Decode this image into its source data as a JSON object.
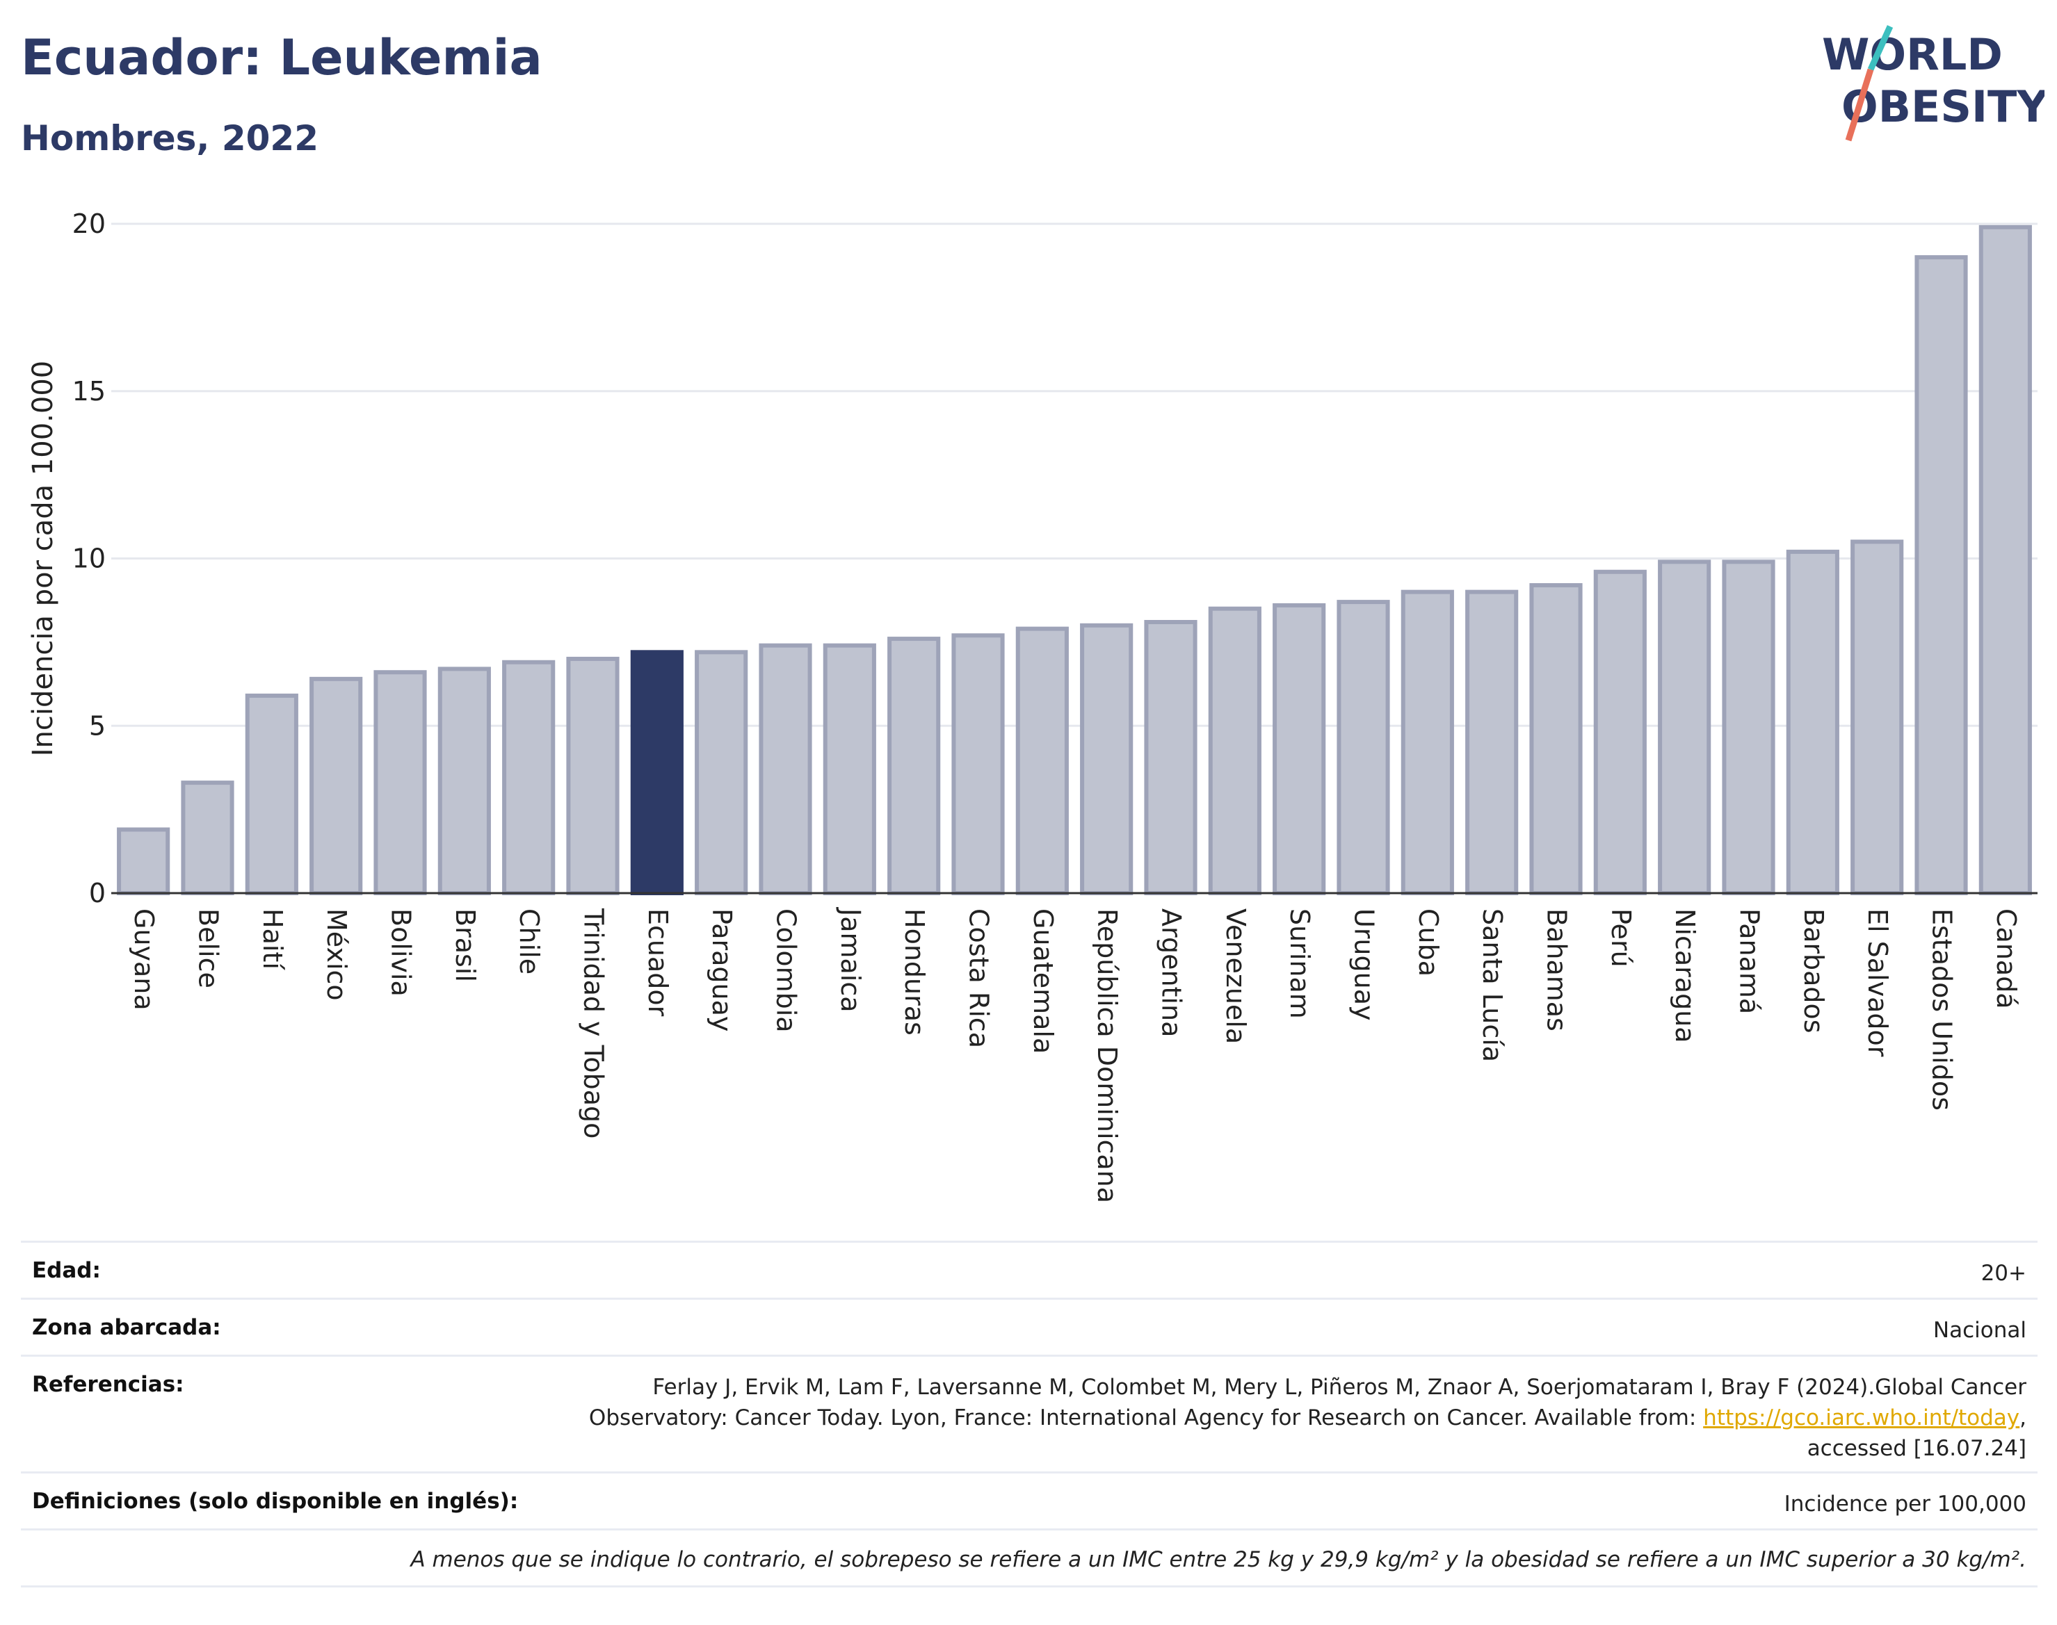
{
  "header": {
    "title": "Ecuador: Leukemia",
    "subtitle": "Hombres, 2022",
    "logo_line1": "WORLD",
    "logo_line2": "OBESITY"
  },
  "colors": {
    "title": "#2d3a66",
    "bar_default": "#bfc3d0",
    "bar_border": "#9ea3b8",
    "bar_highlight": "#2d3a66",
    "link": "#e0a800",
    "logo_teal": "#3cbfbf",
    "logo_coral": "#e8705a"
  },
  "chart_data": {
    "type": "bar",
    "title": "Ecuador: Leukemia",
    "subtitle": "Hombres, 2022",
    "xlabel": "",
    "ylabel": "Incidencia por cada 100.000",
    "ylim": [
      0,
      20
    ],
    "yticks": [
      0,
      5,
      10,
      15,
      20
    ],
    "grid": true,
    "highlight": "Ecuador",
    "categories": [
      "Guyana",
      "Belice",
      "Haití",
      "México",
      "Bolivia",
      "Brasil",
      "Chile",
      "Trinidad y Tobago",
      "Ecuador",
      "Paraguay",
      "Colombia",
      "Jamaica",
      "Honduras",
      "Costa Rica",
      "Guatemala",
      "República Dominicana",
      "Argentina",
      "Venezuela",
      "Surinam",
      "Uruguay",
      "Cuba",
      "Santa Lucía",
      "Bahamas",
      "Perú",
      "Nicaragua",
      "Panamá",
      "Barbados",
      "El Salvador",
      "Estados Unidos",
      "Canadá"
    ],
    "values": [
      1.9,
      3.3,
      5.9,
      6.4,
      6.6,
      6.7,
      6.9,
      7.0,
      7.2,
      7.2,
      7.4,
      7.4,
      7.6,
      7.7,
      7.9,
      8.0,
      8.1,
      8.5,
      8.6,
      8.7,
      9.0,
      9.0,
      9.2,
      9.6,
      9.9,
      9.9,
      10.2,
      10.5,
      19.0,
      19.9
    ]
  },
  "info": {
    "age_label": "Edad:",
    "age_value": "20+",
    "zone_label": "Zona abarcada:",
    "zone_value": "Nacional",
    "refs_label": "Referencias:",
    "refs_line1": "Ferlay J, Ervik M, Lam F, Laversanne M, Colombet M, Mery L, Piñeros M, Znaor A, Soerjomataram I, Bray F (2024).Global Cancer",
    "refs_line2": "Observatory: Cancer Today. Lyon, France: International Agency for Research on Cancer. Available from: ",
    "refs_link": "https://gco.iarc.who.int/today",
    "refs_line2_end": ",",
    "refs_line3": "accessed [16.07.24]",
    "defs_label": "Definiciones (solo disponible en inglés):",
    "defs_value": "Incidence per 100,000",
    "note": "A menos que se indique lo contrario, el sobrepeso se refiere a un IMC entre 25 kg y 29,9 kg/m² y la obesidad se refiere a un IMC superior a 30 kg/m²."
  }
}
